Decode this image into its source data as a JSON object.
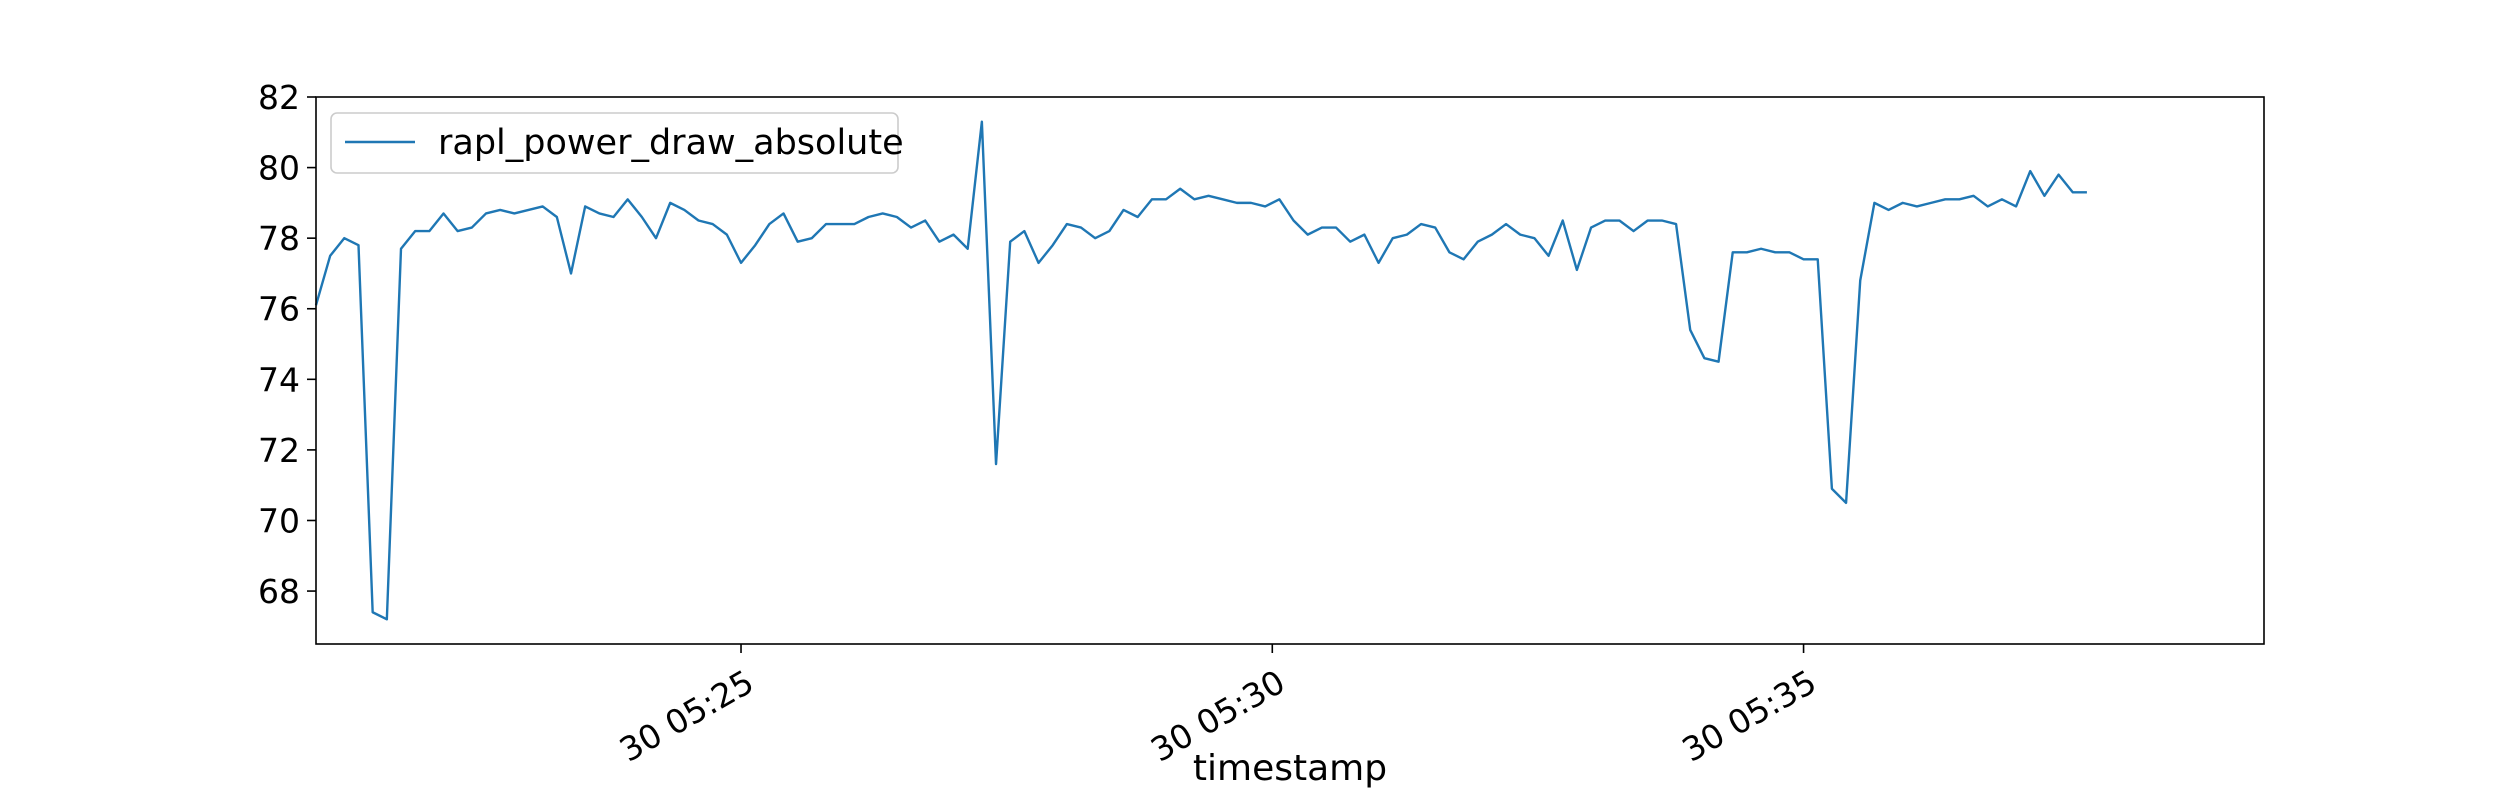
{
  "chart_data": {
    "type": "line",
    "title": "",
    "xlabel": "timestamp",
    "ylabel": "",
    "x_range": [
      "05:20:00",
      "05:38:20"
    ],
    "ylim": [
      66.5,
      82
    ],
    "y_ticks": [
      68,
      70,
      72,
      74,
      76,
      78,
      80,
      82
    ],
    "x_ticks": [
      {
        "time": "05:24:00",
        "label": "30 05:25"
      },
      {
        "time": "05:29:00",
        "label": "30 05:30"
      },
      {
        "time": "05:34:00",
        "label": "30 05:35"
      }
    ],
    "grid": false,
    "legend": {
      "position": "top-left",
      "entries": [
        "rapl_power_draw_absolute"
      ]
    },
    "series": [
      {
        "name": "rapl_power_draw_absolute",
        "color": "#1f77b4",
        "sample_interval_s": 8,
        "start_time": "05:20:00",
        "values": [
          76.1,
          77.5,
          78.0,
          77.8,
          67.4,
          67.2,
          77.7,
          78.2,
          78.2,
          78.7,
          78.2,
          78.3,
          78.7,
          78.8,
          78.7,
          78.8,
          78.9,
          78.6,
          77.0,
          78.9,
          78.7,
          78.6,
          79.1,
          78.6,
          78.0,
          79.0,
          78.8,
          78.5,
          78.4,
          78.1,
          77.3,
          77.8,
          78.4,
          78.7,
          77.9,
          78.0,
          78.4,
          78.4,
          78.4,
          78.6,
          78.7,
          78.6,
          78.3,
          78.5,
          77.9,
          78.1,
          77.7,
          81.3,
          71.6,
          77.9,
          78.2,
          77.3,
          77.8,
          78.4,
          78.3,
          78.0,
          78.2,
          78.8,
          78.6,
          79.1,
          79.1,
          79.4,
          79.1,
          79.2,
          79.1,
          79.0,
          79.0,
          78.9,
          79.1,
          78.5,
          78.1,
          78.3,
          78.3,
          77.9,
          78.1,
          77.3,
          78.0,
          78.1,
          78.4,
          78.3,
          77.6,
          77.4,
          77.9,
          78.1,
          78.4,
          78.1,
          78.0,
          77.5,
          78.5,
          77.1,
          78.3,
          78.5,
          78.5,
          78.2,
          78.5,
          78.5,
          78.4,
          75.4,
          74.6,
          74.5,
          77.6,
          77.6,
          77.7,
          77.6,
          77.6,
          77.4,
          77.4,
          70.9,
          70.5,
          76.8,
          79.0,
          78.8,
          79.0,
          78.9,
          79.0,
          79.1,
          79.1,
          79.2,
          78.9,
          79.1,
          78.9,
          79.9,
          79.2,
          79.8,
          79.3,
          79.3
        ]
      }
    ]
  }
}
